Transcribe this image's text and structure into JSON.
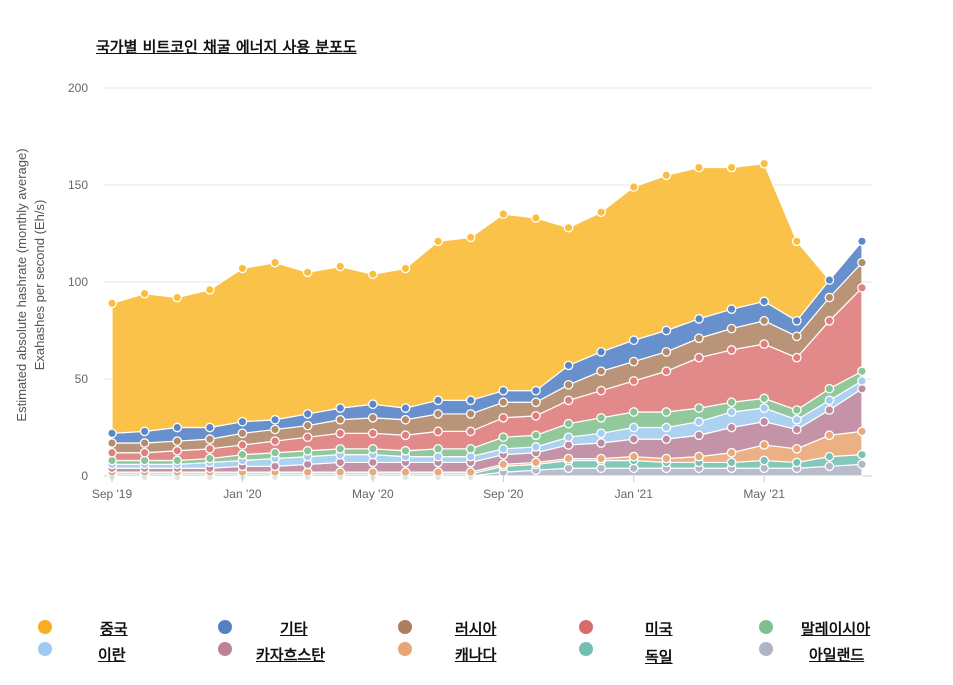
{
  "chart_data": {
    "type": "area",
    "stacked": true,
    "title": "국가별 비트코인 채굴 에너지 사용 분포도",
    "ylabel": [
      "Estimated absolute hashrate (monthly average)",
      "Exahashes per second (Eh/s)"
    ],
    "ylim": [
      0,
      200
    ],
    "yticks": [
      "0",
      "50",
      "100",
      "150",
      "200"
    ],
    "xtick_labels": [
      "Sep '19",
      "Jan '20",
      "May '20",
      "Sep '20",
      "Jan '21",
      "May '21"
    ],
    "x": [
      "2019-09",
      "2019-10",
      "2019-11",
      "2019-12",
      "2020-01",
      "2020-02",
      "2020-03",
      "2020-04",
      "2020-05",
      "2020-06",
      "2020-07",
      "2020-08",
      "2020-09",
      "2020-10",
      "2020-11",
      "2020-12",
      "2021-01",
      "2021-02",
      "2021-03",
      "2021-04",
      "2021-05",
      "2021-06",
      "2021-07",
      "2021-08"
    ],
    "grid": true,
    "legend_position": "bottom",
    "series": [
      {
        "name": "아일랜드",
        "color": "#b3b6c6",
        "values": [
          0,
          0,
          0,
          0,
          0,
          0,
          0,
          0,
          0,
          0,
          0,
          0,
          2,
          3,
          4,
          4,
          4,
          4,
          4,
          4,
          4,
          4,
          5,
          6
        ]
      },
      {
        "name": "독일",
        "color": "#79c3b6",
        "values": [
          1,
          1,
          1,
          1,
          1,
          1,
          1,
          1,
          1,
          1,
          1,
          1,
          3,
          3,
          4,
          4,
          4,
          3,
          3,
          3,
          4,
          3,
          5,
          5
        ]
      },
      {
        "name": "캐나다",
        "color": "#e9a97a",
        "values": [
          1,
          1,
          1,
          1,
          1,
          1,
          1,
          1,
          1,
          1,
          1,
          1,
          1,
          1,
          1,
          1,
          2,
          2,
          3,
          5,
          8,
          7,
          11,
          12
        ]
      },
      {
        "name": "카자흐스탄",
        "color": "#c08aa0",
        "values": [
          2,
          2,
          2,
          2,
          3,
          3,
          4,
          5,
          5,
          5,
          5,
          5,
          5,
          5,
          7,
          8,
          9,
          10,
          11,
          13,
          12,
          10,
          13,
          22
        ]
      },
      {
        "name": "이란",
        "color": "#a6cdf0",
        "values": [
          2,
          2,
          2,
          3,
          3,
          4,
          4,
          4,
          4,
          3,
          3,
          3,
          3,
          3,
          4,
          5,
          6,
          6,
          7,
          8,
          7,
          5,
          5,
          4
        ]
      },
      {
        "name": "말레이시아",
        "color": "#88c495",
        "values": [
          2,
          2,
          2,
          2,
          3,
          3,
          3,
          3,
          3,
          3,
          4,
          4,
          6,
          6,
          7,
          8,
          8,
          8,
          7,
          5,
          5,
          5,
          6,
          5
        ]
      },
      {
        "name": "미국",
        "color": "#df7f7f",
        "values": [
          4,
          4,
          5,
          5,
          5,
          6,
          7,
          8,
          8,
          8,
          9,
          9,
          10,
          10,
          12,
          14,
          16,
          21,
          26,
          27,
          28,
          27,
          35,
          43
        ]
      },
      {
        "name": "러시아",
        "color": "#b38b6d",
        "values": [
          5,
          5,
          5,
          5,
          6,
          6,
          6,
          7,
          8,
          8,
          9,
          9,
          8,
          7,
          8,
          10,
          10,
          10,
          10,
          11,
          12,
          11,
          12,
          13
        ]
      },
      {
        "name": "기타",
        "color": "#5b87c8",
        "values": [
          5,
          6,
          7,
          6,
          6,
          5,
          6,
          6,
          7,
          6,
          7,
          7,
          6,
          6,
          10,
          10,
          11,
          11,
          10,
          10,
          10,
          8,
          9,
          11
        ]
      },
      {
        "name": "중국",
        "color": "#fbbd3b",
        "values": [
          67,
          71,
          67,
          71,
          79,
          81,
          73,
          73,
          67,
          72,
          82,
          84,
          91,
          89,
          71,
          72,
          79,
          80,
          78,
          73,
          71,
          41,
          0,
          0
        ]
      }
    ]
  },
  "legend": [
    {
      "label": "중국",
      "color": "#f6ae22"
    },
    {
      "label": "기타",
      "color": "#5681c1"
    },
    {
      "label": "러시아",
      "color": "#ad7e5e"
    },
    {
      "label": "미국",
      "color": "#d96a6a"
    },
    {
      "label": "말레이시아",
      "color": "#7fc18e"
    },
    {
      "label": "이란",
      "color": "#9ecbef"
    },
    {
      "label": "카자흐스탄",
      "color": "#bf8297"
    },
    {
      "label": "캐나다",
      "color": "#e8a578"
    },
    {
      "label": "독일",
      "color": "#73c0b3"
    },
    {
      "label": "아일랜드",
      "color": "#b0b3c4"
    }
  ]
}
